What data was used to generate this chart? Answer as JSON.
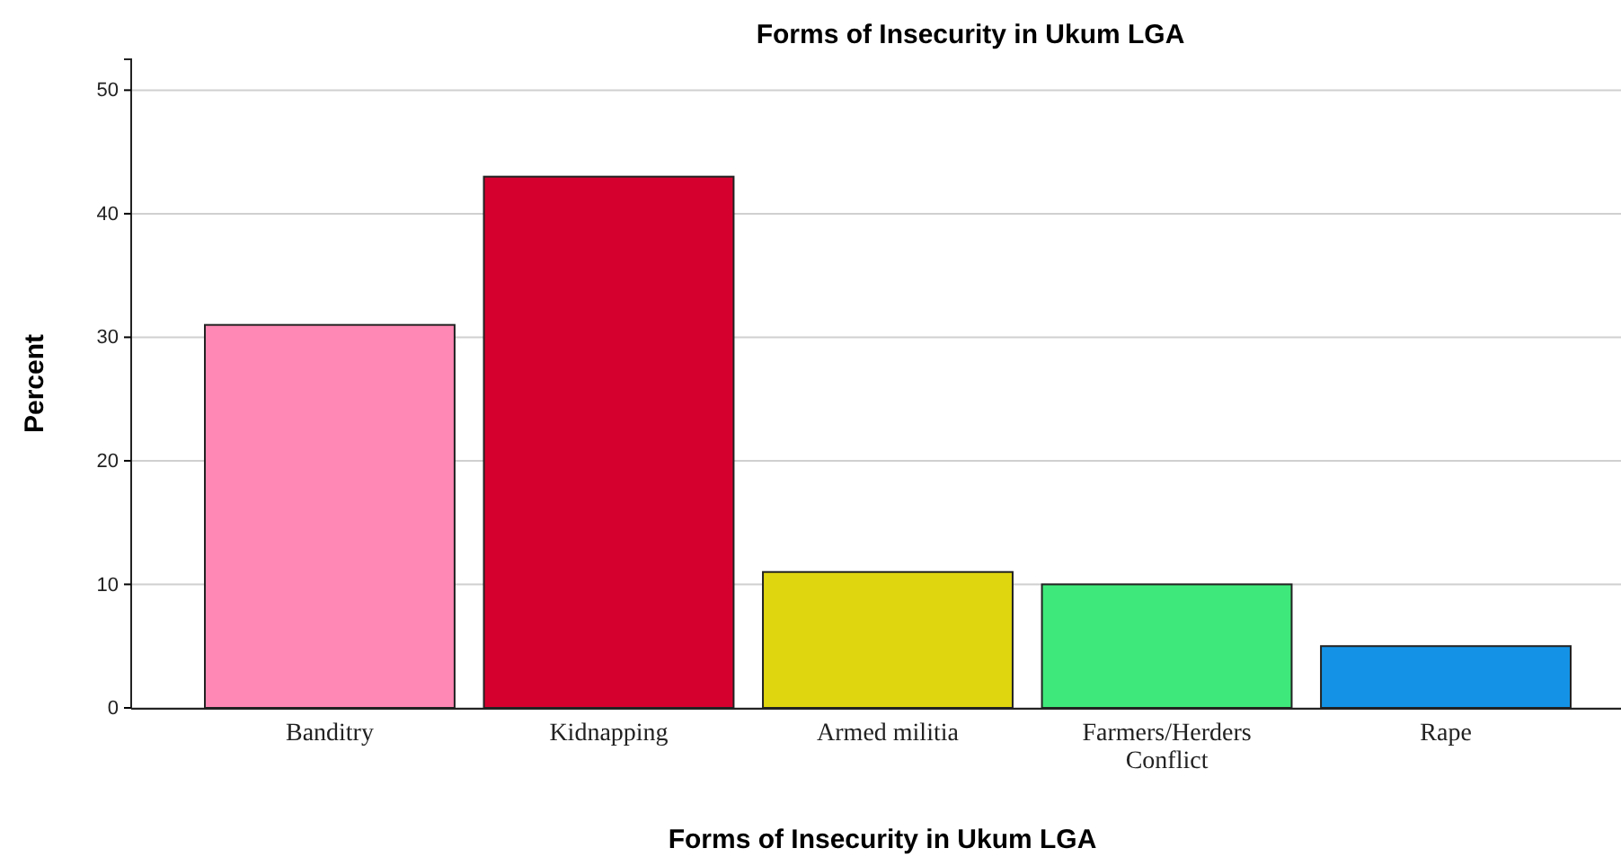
{
  "chart_data": {
    "type": "bar",
    "title": "Forms of Insecurity in Ukum LGA",
    "xlabel": "Forms of Insecurity in Ukum LGA",
    "ylabel": "Percent",
    "categories": [
      "Banditry",
      "Kidnapping",
      "Armed militia",
      "Farmers/Herders Conflict",
      "Rape"
    ],
    "values": [
      31,
      43,
      11,
      10,
      5
    ],
    "colors": [
      "#ff88b4",
      "#d6002f",
      "#e0d60f",
      "#3fe87a",
      "#1493e6"
    ],
    "ylim": [
      0,
      52.5
    ],
    "yticks": [
      0,
      10,
      20,
      30,
      40,
      50
    ],
    "grid": "y"
  }
}
